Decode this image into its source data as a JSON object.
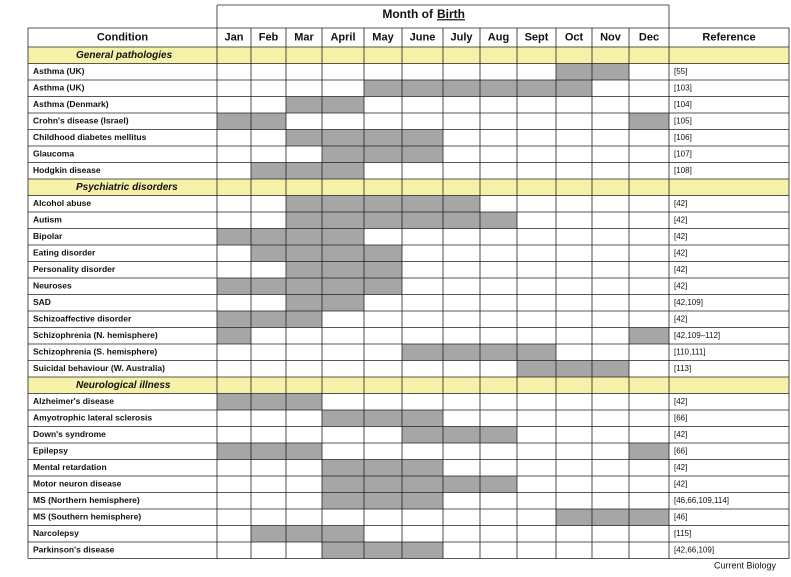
{
  "header": {
    "title": "Month of",
    "title_underlined": "Birth"
  },
  "table": {
    "columns": [
      "Condition",
      "Jan",
      "Feb",
      "Mar",
      "April",
      "May",
      "June",
      "July",
      "Aug",
      "Sept",
      "Oct",
      "Nov",
      "Dec",
      "Reference"
    ],
    "sections": [
      {
        "title": "General pathologies",
        "rows": [
          {
            "condition": "Asthma (UK)",
            "reference": "[55]",
            "shaded": [
              false,
              false,
              false,
              false,
              false,
              false,
              false,
              false,
              false,
              true,
              true,
              false
            ]
          },
          {
            "condition": "Asthma (UK)",
            "reference": "[103]",
            "shaded": [
              false,
              false,
              false,
              false,
              true,
              true,
              true,
              true,
              true,
              true,
              false,
              false
            ]
          },
          {
            "condition": "Asthma (Denmark)",
            "reference": "[104]",
            "shaded": [
              false,
              false,
              true,
              true,
              false,
              false,
              false,
              false,
              false,
              false,
              false,
              false
            ]
          },
          {
            "condition": "Crohn's disease (Israel)",
            "reference": "[105]",
            "shaded": [
              true,
              true,
              false,
              false,
              false,
              false,
              false,
              false,
              false,
              false,
              false,
              true
            ]
          },
          {
            "condition": "Childhood diabetes mellitus",
            "reference": "[106]",
            "shaded": [
              false,
              false,
              true,
              true,
              true,
              true,
              false,
              false,
              false,
              false,
              false,
              false
            ]
          },
          {
            "condition": "Glaucoma",
            "reference": "[107]",
            "shaded": [
              false,
              false,
              false,
              true,
              true,
              true,
              false,
              false,
              false,
              false,
              false,
              false
            ]
          },
          {
            "condition": "Hodgkin disease",
            "reference": "[108]",
            "shaded": [
              false,
              true,
              true,
              true,
              false,
              false,
              false,
              false,
              false,
              false,
              false,
              false
            ]
          }
        ]
      },
      {
        "title": "Psychiatric disorders",
        "rows": [
          {
            "condition": "Alcohol abuse",
            "reference": "[42]",
            "shaded": [
              false,
              false,
              true,
              true,
              true,
              true,
              true,
              false,
              false,
              false,
              false,
              false
            ]
          },
          {
            "condition": "Autism",
            "reference": "[42]",
            "shaded": [
              false,
              false,
              true,
              true,
              true,
              true,
              true,
              true,
              false,
              false,
              false,
              false
            ]
          },
          {
            "condition": "Bipolar",
            "reference": "[42]",
            "shaded": [
              true,
              true,
              true,
              true,
              false,
              false,
              false,
              false,
              false,
              false,
              false,
              false
            ]
          },
          {
            "condition": "Eating disorder",
            "reference": "[42]",
            "shaded": [
              false,
              true,
              true,
              true,
              true,
              false,
              false,
              false,
              false,
              false,
              false,
              false
            ]
          },
          {
            "condition": "Personality disorder",
            "reference": "[42]",
            "shaded": [
              false,
              false,
              true,
              true,
              true,
              false,
              false,
              false,
              false,
              false,
              false,
              false
            ]
          },
          {
            "condition": "Neuroses",
            "reference": "[42]",
            "shaded": [
              true,
              true,
              true,
              true,
              true,
              false,
              false,
              false,
              false,
              false,
              false,
              false
            ]
          },
          {
            "condition": "SAD",
            "reference": "[42,109]",
            "shaded": [
              false,
              false,
              true,
              true,
              false,
              false,
              false,
              false,
              false,
              false,
              false,
              false
            ]
          },
          {
            "condition": "Schizoaffective disorder",
            "reference": "[42]",
            "shaded": [
              true,
              true,
              true,
              false,
              false,
              false,
              false,
              false,
              false,
              false,
              false,
              false
            ]
          },
          {
            "condition": "Schizophrenia (N. hemisphere)",
            "reference": "[42,109–112]",
            "shaded": [
              true,
              false,
              false,
              false,
              false,
              false,
              false,
              false,
              false,
              false,
              false,
              true
            ]
          },
          {
            "condition": "Schizophrenia (S. hemisphere)",
            "reference": "[110,111]",
            "shaded": [
              false,
              false,
              false,
              false,
              false,
              true,
              true,
              true,
              true,
              false,
              false,
              false
            ]
          },
          {
            "condition": "Suicidal behaviour (W. Australia)",
            "reference": "[113]",
            "shaded": [
              false,
              false,
              false,
              false,
              false,
              false,
              false,
              false,
              true,
              true,
              true,
              false
            ]
          }
        ]
      },
      {
        "title": "Neurological illness",
        "rows": [
          {
            "condition": "Alzheimer's disease",
            "reference": "[42]",
            "shaded": [
              true,
              true,
              true,
              false,
              false,
              false,
              false,
              false,
              false,
              false,
              false,
              false
            ]
          },
          {
            "condition": "Amyotrophic lateral sclerosis",
            "reference": "[66]",
            "shaded": [
              false,
              false,
              false,
              true,
              true,
              true,
              false,
              false,
              false,
              false,
              false,
              false
            ]
          },
          {
            "condition": "Down's syndrome",
            "reference": "[42]",
            "shaded": [
              false,
              false,
              false,
              false,
              false,
              true,
              true,
              true,
              false,
              false,
              false,
              false
            ]
          },
          {
            "condition": "Epilepsy",
            "reference": "[66]",
            "shaded": [
              true,
              true,
              true,
              false,
              false,
              false,
              false,
              false,
              false,
              false,
              false,
              true
            ]
          },
          {
            "condition": "Mental retardation",
            "reference": "[42]",
            "shaded": [
              false,
              false,
              false,
              true,
              true,
              true,
              false,
              false,
              false,
              false,
              false,
              false
            ]
          },
          {
            "condition": "Motor neuron disease",
            "reference": "[42]",
            "shaded": [
              false,
              false,
              false,
              true,
              true,
              true,
              true,
              true,
              false,
              false,
              false,
              false
            ]
          },
          {
            "condition": "MS (Northern hemisphere)",
            "reference": "[46,66,109,114]",
            "shaded": [
              false,
              false,
              false,
              true,
              true,
              true,
              false,
              false,
              false,
              false,
              false,
              false
            ]
          },
          {
            "condition": "MS (Southern hemisphere)",
            "reference": "[46]",
            "shaded": [
              false,
              false,
              false,
              false,
              false,
              false,
              false,
              false,
              false,
              true,
              true,
              true
            ]
          },
          {
            "condition": "Narcolepsy",
            "reference": "[115]",
            "shaded": [
              false,
              true,
              true,
              true,
              false,
              false,
              false,
              false,
              false,
              false,
              false,
              false
            ]
          },
          {
            "condition": "Parkinson's disease",
            "reference": "[42,66,109]",
            "shaded": [
              false,
              false,
              false,
              true,
              true,
              true,
              false,
              false,
              false,
              false,
              false,
              false
            ]
          }
        ]
      }
    ]
  },
  "footer": "Current Biology"
}
